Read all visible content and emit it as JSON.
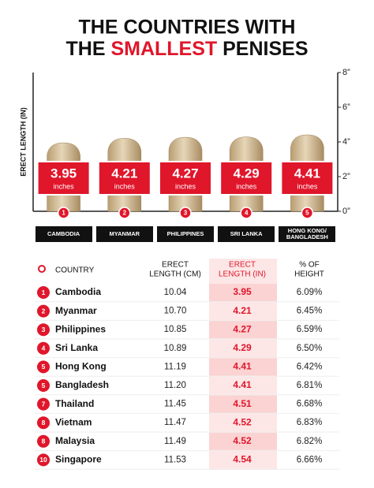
{
  "chart_data": {
    "type": "bar",
    "title": {
      "line1": "THE COUNTRIES WITH",
      "line2_start": "THE",
      "highlight": "SMALLEST",
      "line2_end": "PENISES"
    },
    "y_label": "ERECT LENGTH (IN)",
    "categories": [
      "CAMBODIA",
      "MYANMAR",
      "PHILIPPINES",
      "SRI LANKA",
      "HONG KONG/ BANGLADESH"
    ],
    "ranks": [
      "1",
      "2",
      "3",
      "4",
      "5"
    ],
    "values": [
      3.95,
      4.21,
      4.27,
      4.29,
      4.41
    ],
    "unit_label": "inches",
    "color": "#d8c29c",
    "label_color": "#e0162b",
    "ylim": [
      0,
      8
    ],
    "yticks": [
      {
        "value": 0,
        "label": "0”"
      },
      {
        "value": 2,
        "label": "2”"
      },
      {
        "value": 4,
        "label": "4”"
      },
      {
        "value": 6,
        "label": "6”"
      },
      {
        "value": 8,
        "label": "8”"
      }
    ],
    "grid": false
  },
  "table": {
    "columns": [
      [
        "COUNTRY"
      ],
      [
        "ERECT",
        "LENGTH (CM)"
      ],
      [
        "ERECT",
        "LENGTH (IN)"
      ],
      [
        "% OF",
        "HEIGHT"
      ]
    ],
    "rows": [
      [
        "1",
        "Cambodia",
        "10.04",
        "3.95",
        "6.09%"
      ],
      [
        "2",
        "Myanmar",
        "10.70",
        "4.21",
        "6.45%"
      ],
      [
        "3",
        "Philippines",
        "10.85",
        "4.27",
        "6.59%"
      ],
      [
        "4",
        "Sri Lanka",
        "10.89",
        "4.29",
        "6.50%"
      ],
      [
        "5",
        "Hong Kong",
        "11.19",
        "4.41",
        "6.42%"
      ],
      [
        "5",
        "Bangladesh",
        "11.20",
        "4.41",
        "6.81%"
      ],
      [
        "7",
        "Thailand",
        "11.45",
        "4.51",
        "6.68%"
      ],
      [
        "8",
        "Vietnam",
        "11.47",
        "4.52",
        "6.83%"
      ],
      [
        "8",
        "Malaysia",
        "11.49",
        "4.52",
        "6.82%"
      ],
      [
        "10",
        "Singapore",
        "11.53",
        "4.54",
        "6.66%"
      ]
    ]
  }
}
